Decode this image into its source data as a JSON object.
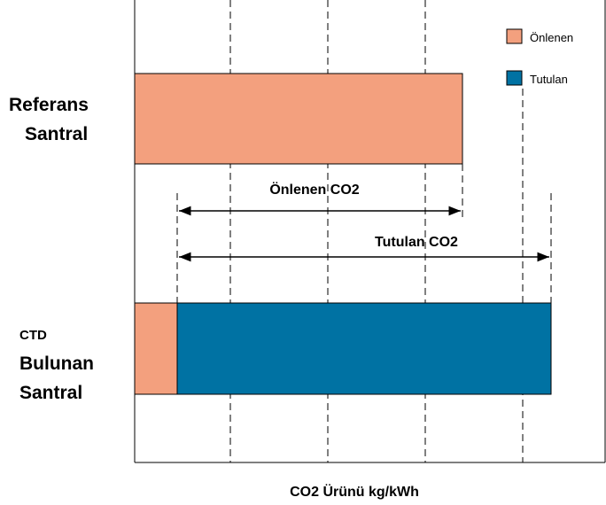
{
  "legend": [
    {
      "label": "Önlenen",
      "color": "#f3a07e"
    },
    {
      "label": "Tutulan",
      "color": "#0072a3"
    }
  ],
  "rows": [
    {
      "lines": [
        "Referans",
        "Santral"
      ]
    },
    {
      "lines": [
        "CTD",
        "Bulunan",
        "Santral"
      ]
    }
  ],
  "annotations": [
    "Önlenen CO2",
    "Tutulan CO2"
  ],
  "x_label": "CO2 Ürünü kg/kWh"
}
